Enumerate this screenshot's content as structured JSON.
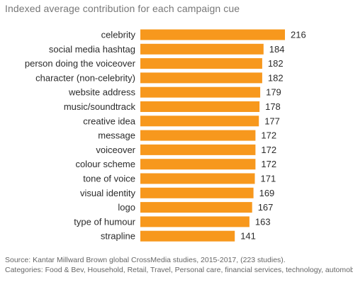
{
  "chart_data": {
    "type": "bar",
    "orientation": "horizontal",
    "title": "Indexed average contribution for each campaign cue",
    "categories": [
      "celebrity",
      "social media hashtag",
      "person doing the voiceover",
      "character (non-celebrity)",
      "website address",
      "music/soundtrack",
      "creative idea",
      "message",
      "voiceover",
      "colour scheme",
      "tone of voice",
      "visual identity",
      "logo",
      "type of humour",
      "strapline"
    ],
    "values": [
      216,
      184,
      182,
      182,
      179,
      178,
      177,
      172,
      172,
      172,
      171,
      169,
      167,
      163,
      141
    ],
    "xlim": [
      0,
      216
    ],
    "grid": false,
    "legend": "none",
    "bar_color": "#F7981D"
  },
  "footer": {
    "source": "Source: Kantar Millward Brown global CrossMedia studies, 2015-2017, (223 studies).",
    "categories": "Categories: Food & Bev, Household, Retail, Travel, Personal care, financial services, technology, automobiles"
  }
}
